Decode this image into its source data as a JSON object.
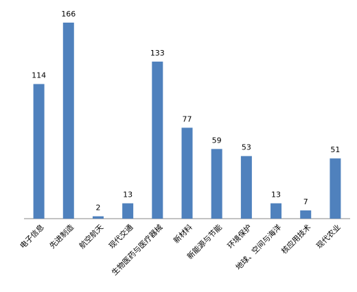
{
  "chart_data": {
    "type": "bar",
    "categories": [
      "电子信息",
      "先进制造",
      "航空航天",
      "现代交通",
      "生物医药与医疗器械",
      "新材料",
      "新能源与节能",
      "环境保护",
      "地球、空间与海洋",
      "核应用技术",
      "现代农业"
    ],
    "values": [
      114,
      166,
      2,
      13,
      133,
      77,
      59,
      53,
      13,
      7,
      51
    ],
    "color": "#4f81bd"
  }
}
